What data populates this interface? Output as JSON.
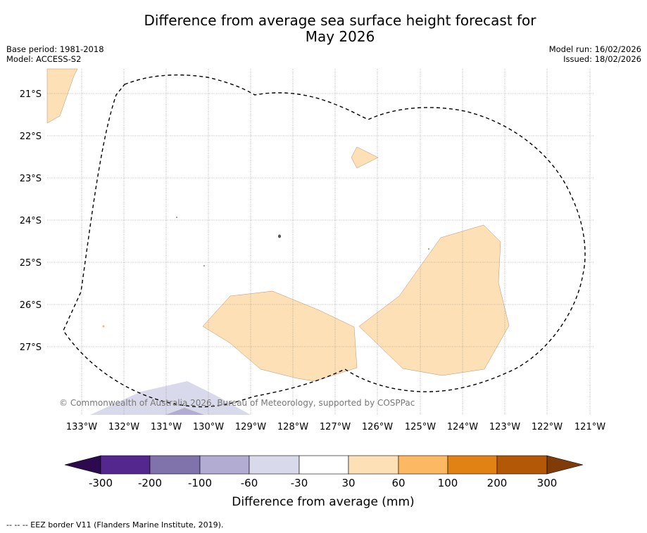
{
  "title_line1": "Difference from average sea surface height forecast for",
  "title_line2": "May 2026",
  "base_period": "Base period: 1981-2018",
  "model": "Model: ACCESS-S2",
  "model_run": "Model run: 16/02/2026",
  "issued": "Issued: 18/02/2026",
  "copyright": "© Commonwealth of Australia 2026, Bureau of Meteorology, supported by COSPPac",
  "lat_labels": [
    "21°S",
    "22°S",
    "23°S",
    "24°S",
    "25°S",
    "26°S",
    "27°S"
  ],
  "lon_labels": [
    "133°W",
    "132°W",
    "131°W",
    "130°W",
    "129°W",
    "128°W",
    "127°W",
    "126°W",
    "125°W",
    "124°W",
    "123°W",
    "122°W",
    "121°W"
  ],
  "colorbar": {
    "title": "Difference from average (mm)",
    "ticks": [
      "-300",
      "-200",
      "-100",
      "-60",
      "-30",
      "30",
      "60",
      "100",
      "200",
      "300"
    ],
    "colors": [
      "#2d0a4e",
      "#54278f",
      "#8073ac",
      "#b2abd2",
      "#d8daeb",
      "#ffffff",
      "#fee0b6",
      "#fdb863",
      "#e08214",
      "#b35806",
      "#7f3b08"
    ]
  },
  "footer": "--  --  -- EEZ border V11 (Flanders Marine Institute, 2019)."
}
